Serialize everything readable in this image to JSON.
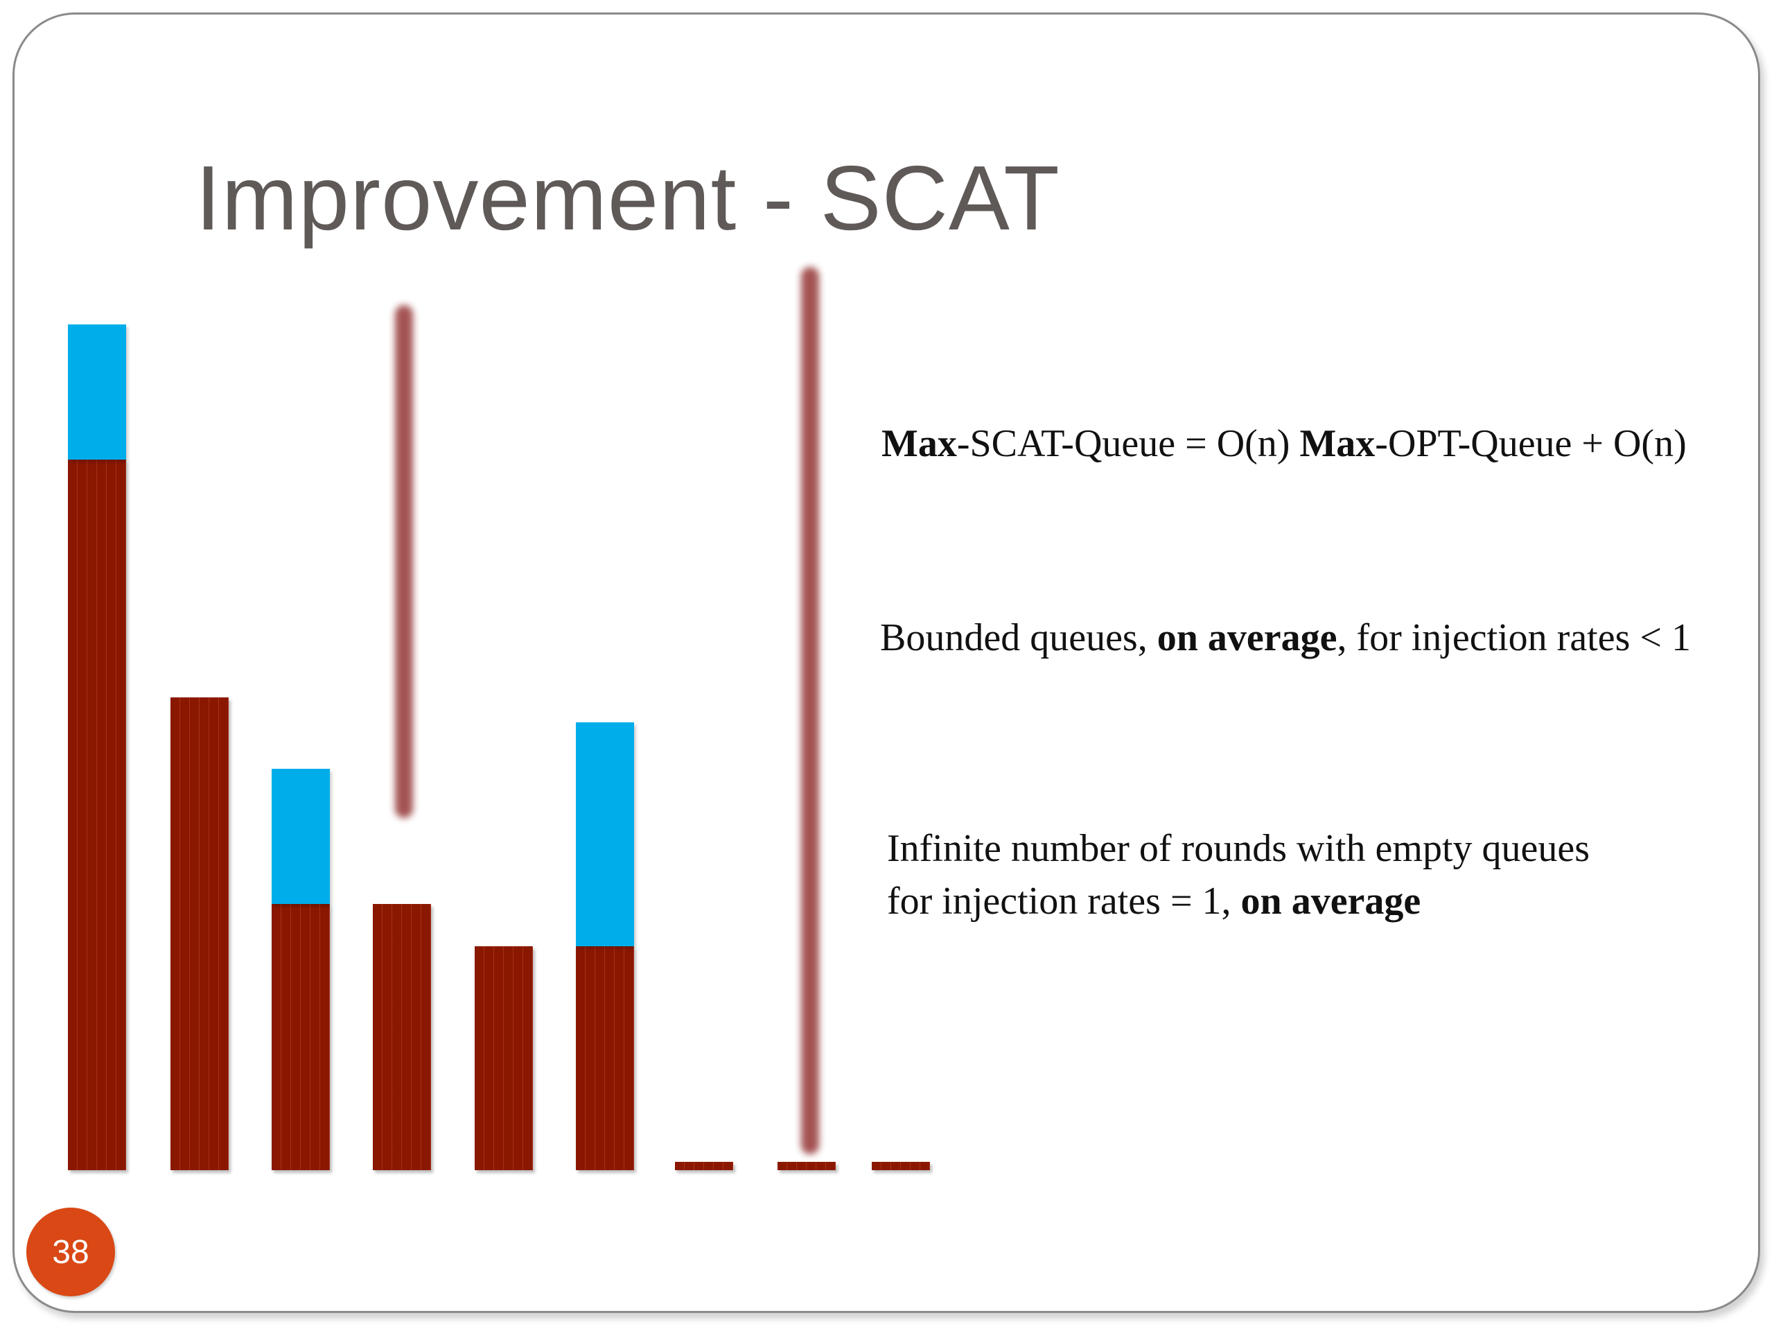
{
  "slide": {
    "title": "Improvement - SCAT",
    "page_number": "38"
  },
  "statements": {
    "line1": {
      "bold_a": "Max",
      "text_a": "-SCAT-Queue = O(n) ",
      "bold_b": "Max",
      "text_b": "-OPT-Queue + O(n)"
    },
    "line2": {
      "text_a": "Bounded queues, ",
      "bold_a": "on average",
      "text_b": ", for injection rates < 1"
    },
    "line3": {
      "text_a": "Infinite number of rounds with empty queues"
    },
    "line4": {
      "text_a": "for injection rates = 1, ",
      "bold_a": "on average"
    }
  },
  "queue_illustration": {
    "colors": {
      "queue_fill": "#8a1800",
      "extra_fill": "#00adeb",
      "marker_line": "#a04a4a"
    },
    "queues": [
      {
        "base": 1.0,
        "extra": 0.19
      },
      {
        "base": 0.665,
        "extra": 0
      },
      {
        "base": 0.375,
        "extra": 0.19
      },
      {
        "base": 0.375,
        "extra": 0
      },
      {
        "base": 0.315,
        "extra": 0
      },
      {
        "base": 0.315,
        "extra": 0.315
      },
      {
        "base": 0.012,
        "extra": 0
      },
      {
        "base": 0.012,
        "extra": 0
      },
      {
        "base": 0.012,
        "extra": 0
      }
    ]
  }
}
